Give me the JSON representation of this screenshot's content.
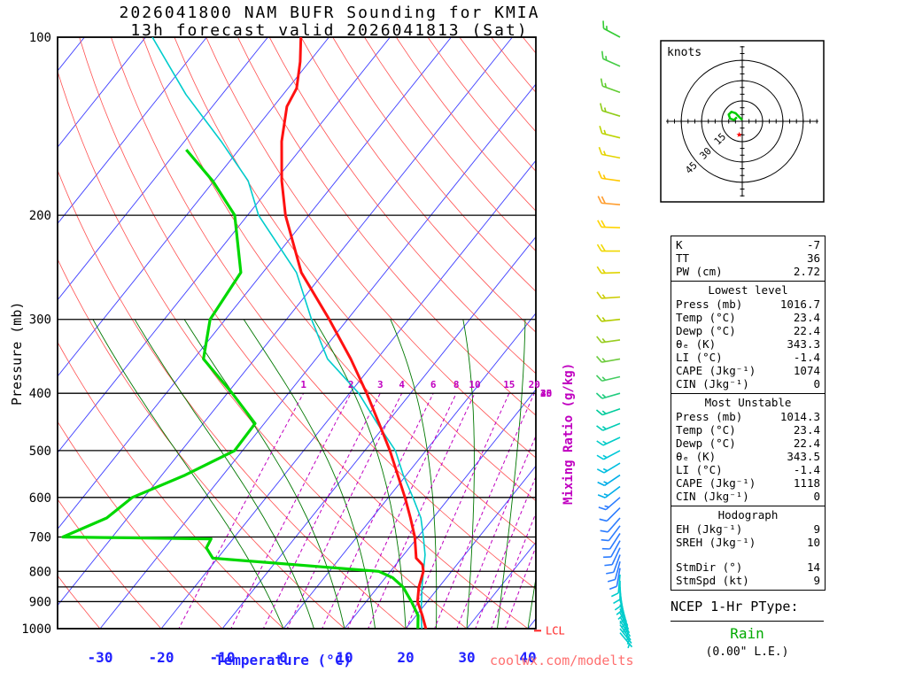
{
  "title": {
    "line1": "2026041800 NAM BUFR Sounding for KMIA",
    "line2": "13h forecast valid 2026041813 (Sat)"
  },
  "axes": {
    "pressure_label": "Pressure (mb)",
    "temperature_label": "Temperature (°C)",
    "mixing_ratio_label": "Mixing Ratio (g/kg)",
    "pressure_ticks": [
      100,
      200,
      300,
      400,
      500,
      600,
      700,
      800,
      900,
      1000
    ],
    "temperature_ticks": [
      -30,
      -20,
      -10,
      0,
      10,
      20,
      30,
      40
    ],
    "lcl_label": "LCL"
  },
  "watermark": "coolwx.com/modelts",
  "colors": {
    "temp_profile": "#ff1111",
    "dewpoint_profile": "#00d800",
    "parcel_profile": "#00cccc",
    "isotherm": "#4040ff",
    "dry_adiabat": "#ff5050",
    "moist_adiabat": "#007700",
    "mixing_ratio": "#c000c0",
    "grid_line": "#000000",
    "temp_axis_text": "#2222ff",
    "pressure_axis_text": "#000000",
    "lcl_marker": "#ff2222",
    "hodo_trace": "#00cc00",
    "storm_motion_star": "#ff0000",
    "ptype_value": "#00aa00",
    "watermark": "#ff7070"
  },
  "chart_data": {
    "type": "skewt-log-p-sounding",
    "pressure_range_mb": [
      100,
      1050
    ],
    "isotherm_range_c": [
      -110,
      40
    ],
    "isotherm_step_c": 10,
    "dry_adiabat_theta_c": {
      "min": -40,
      "max": 180,
      "step": 10
    },
    "moist_adiabat_start_temps_c": [
      0,
      5,
      10,
      15,
      20,
      25,
      30,
      35,
      40
    ],
    "mixing_ratio_lines_gkg": [
      1,
      2,
      3,
      4,
      6,
      8,
      10,
      15,
      20,
      25,
      30,
      35,
      40
    ],
    "mixing_ratio_labels_at_400mb": [
      1,
      2,
      3,
      4,
      6,
      8,
      10,
      15,
      20
    ],
    "mixing_ratio_labels_right_edge": [
      25,
      30,
      35,
      40
    ],
    "pressure_grid_lines_mb": [
      100,
      200,
      300,
      400,
      500,
      600,
      700,
      800,
      850,
      900,
      1000
    ],
    "lcl_pressure_mb": 1008,
    "temperature_profile": {
      "pressure_mb": [
        1016.7,
        1000,
        950,
        900,
        850,
        800,
        780,
        760,
        700,
        650,
        600,
        550,
        500,
        450,
        400,
        350,
        300,
        250,
        200,
        175,
        150,
        131,
        122,
        110,
        100
      ],
      "temp_c": [
        23.4,
        23.3,
        21.0,
        18.4,
        16.7,
        15.4,
        14.4,
        12.5,
        9.5,
        6.3,
        2.7,
        -1.4,
        -5.9,
        -11.2,
        -17.2,
        -24.3,
        -33.0,
        -43.7,
        -53.8,
        -58.9,
        -64.1,
        -67.8,
        -68.6,
        -71.5,
        -74.6
      ]
    },
    "dewpoint_profile": {
      "pressure_mb": [
        1016.7,
        1000,
        950,
        900,
        850,
        820,
        800,
        760,
        730,
        705,
        700,
        650,
        600,
        550,
        500,
        450,
        400,
        350,
        300,
        250,
        200,
        175,
        155
      ],
      "temp_c": [
        22.4,
        22.0,
        20.3,
        17.4,
        14.1,
        11.2,
        8.1,
        -20.8,
        -23.2,
        -23.6,
        -48.1,
        -43.4,
        -41.9,
        -36.2,
        -31.3,
        -31.5,
        -39.2,
        -48.4,
        -52.5,
        -53.6,
        -62.1,
        -70.2,
        -78.6
      ]
    },
    "parcel_profile": {
      "pressure_mb": [
        1010,
        950,
        850,
        750,
        700,
        650,
        600,
        550,
        500,
        450,
        400,
        350,
        300,
        250,
        200,
        175,
        150,
        125,
        100
      ],
      "temp_c": [
        23.0,
        20.8,
        17.2,
        13.5,
        10.9,
        8.0,
        4.0,
        -0.5,
        -5.0,
        -11.5,
        -18.5,
        -28.1,
        -35.9,
        -44.5,
        -58.2,
        -64.4,
        -74.0,
        -85.9,
        -98.9
      ]
    },
    "winds": [
      {
        "p": 1016,
        "spd": 5,
        "dir": 140,
        "color": "#00cccc"
      },
      {
        "p": 1000,
        "spd": 6,
        "dir": 142,
        "color": "#00cccc"
      },
      {
        "p": 985,
        "spd": 6,
        "dir": 145,
        "color": "#00cccc"
      },
      {
        "p": 970,
        "spd": 7,
        "dir": 147,
        "color": "#00cccc"
      },
      {
        "p": 955,
        "spd": 7,
        "dir": 150,
        "color": "#00cccc"
      },
      {
        "p": 940,
        "spd": 7,
        "dir": 153,
        "color": "#00cccc"
      },
      {
        "p": 925,
        "spd": 8,
        "dir": 156,
        "color": "#00cccc"
      },
      {
        "p": 910,
        "spd": 8,
        "dir": 160,
        "color": "#00cccc"
      },
      {
        "p": 895,
        "spd": 8,
        "dir": 164,
        "color": "#00cccc"
      },
      {
        "p": 880,
        "spd": 8,
        "dir": 168,
        "color": "#00cccc"
      },
      {
        "p": 865,
        "spd": 9,
        "dir": 172,
        "color": "#00cccc"
      },
      {
        "p": 850,
        "spd": 9,
        "dir": 176,
        "color": "#00cccc"
      },
      {
        "p": 830,
        "spd": 9,
        "dir": 180,
        "color": "#00cccc"
      },
      {
        "p": 810,
        "spd": 10,
        "dir": 185,
        "color": "#00cccc"
      },
      {
        "p": 790,
        "spd": 10,
        "dir": 190,
        "color": "#2b7cff"
      },
      {
        "p": 770,
        "spd": 10,
        "dir": 195,
        "color": "#2b7cff"
      },
      {
        "p": 750,
        "spd": 10,
        "dir": 200,
        "color": "#2b7cff"
      },
      {
        "p": 730,
        "spd": 11,
        "dir": 205,
        "color": "#2b7cff"
      },
      {
        "p": 710,
        "spd": 11,
        "dir": 209,
        "color": "#2b7cff"
      },
      {
        "p": 690,
        "spd": 11,
        "dir": 213,
        "color": "#2b7cff"
      },
      {
        "p": 670,
        "spd": 12,
        "dir": 217,
        "color": "#2b7cff"
      },
      {
        "p": 650,
        "spd": 12,
        "dir": 221,
        "color": "#2b7cff"
      },
      {
        "p": 625,
        "spd": 12,
        "dir": 225,
        "color": "#2b7cff"
      },
      {
        "p": 600,
        "spd": 13,
        "dir": 229,
        "color": "#2b7cff"
      },
      {
        "p": 575,
        "spd": 13,
        "dir": 233,
        "color": "#00aee8"
      },
      {
        "p": 550,
        "spd": 13,
        "dir": 236,
        "color": "#00aee8"
      },
      {
        "p": 525,
        "spd": 14,
        "dir": 239,
        "color": "#00bee0"
      },
      {
        "p": 500,
        "spd": 14,
        "dir": 242,
        "color": "#00c8d8"
      },
      {
        "p": 475,
        "spd": 14,
        "dir": 245,
        "color": "#00ccc8"
      },
      {
        "p": 450,
        "spd": 15,
        "dir": 248,
        "color": "#00ccb4"
      },
      {
        "p": 425,
        "spd": 15,
        "dir": 251,
        "color": "#00cc9c"
      },
      {
        "p": 400,
        "spd": 15,
        "dir": 254,
        "color": "#22cc80"
      },
      {
        "p": 375,
        "spd": 15,
        "dir": 257,
        "color": "#44cc60"
      },
      {
        "p": 350,
        "spd": 16,
        "dir": 260,
        "color": "#70cc40"
      },
      {
        "p": 325,
        "spd": 16,
        "dir": 262,
        "color": "#98cc20"
      },
      {
        "p": 300,
        "spd": 16,
        "dir": 264,
        "color": "#b4cc00"
      },
      {
        "p": 275,
        "spd": 17,
        "dir": 266,
        "color": "#cccc00"
      },
      {
        "p": 250,
        "spd": 17,
        "dir": 268,
        "color": "#e0d400"
      },
      {
        "p": 230,
        "spd": 18,
        "dir": 270,
        "color": "#f0d800"
      },
      {
        "p": 210,
        "spd": 18,
        "dir": 272,
        "color": "#ffd400"
      },
      {
        "p": 192,
        "spd": 18,
        "dir": 275,
        "color": "#ff9d2e"
      },
      {
        "p": 175,
        "spd": 17,
        "dir": 278,
        "color": "#ffc800"
      },
      {
        "p": 160,
        "spd": 17,
        "dir": 281,
        "color": "#e4d400"
      },
      {
        "p": 148,
        "spd": 16,
        "dir": 284,
        "color": "#bcd400"
      },
      {
        "p": 136,
        "spd": 16,
        "dir": 287,
        "color": "#90cc18"
      },
      {
        "p": 124,
        "spd": 15,
        "dir": 290,
        "color": "#60cc30"
      },
      {
        "p": 112,
        "spd": 15,
        "dir": 294,
        "color": "#44cc44"
      },
      {
        "p": 100,
        "spd": 16,
        "dir": 298,
        "color": "#33cc33"
      }
    ]
  },
  "hodograph": {
    "units_label": "knots",
    "ring_labels": [
      15,
      30,
      45
    ],
    "ring_step_kt": 15,
    "trace_uv_kt": [
      [
        0,
        1
      ],
      [
        -2,
        3
      ],
      [
        -5,
        6
      ],
      [
        -8,
        7
      ],
      [
        -10,
        5
      ],
      [
        -9,
        2
      ],
      [
        -6,
        1
      ],
      [
        -4,
        3
      ]
    ],
    "storm_motion": {
      "dir_deg": 14,
      "spd_kt": 9
    }
  },
  "stats_sections": [
    {
      "title": "",
      "rows": [
        [
          "K",
          "-7"
        ],
        [
          "TT",
          "36"
        ],
        [
          "PW (cm)",
          "2.72"
        ]
      ]
    },
    {
      "title": "Lowest level",
      "rows": [
        [
          "Press (mb)",
          "1016.7"
        ],
        [
          "Temp (°C)",
          "23.4"
        ],
        [
          "Dewp (°C)",
          "22.4"
        ],
        [
          "θₑ (K)",
          "343.3"
        ],
        [
          "LI (°C)",
          "-1.4"
        ],
        [
          "CAPE (Jkg⁻¹)",
          "1074"
        ],
        [
          "CIN (Jkg⁻¹)",
          "0"
        ]
      ]
    },
    {
      "title": "Most Unstable",
      "rows": [
        [
          "Press (mb)",
          "1014.3"
        ],
        [
          "Temp (°C)",
          "23.4"
        ],
        [
          "Dewp (°C)",
          "22.4"
        ],
        [
          "θₑ (K)",
          "343.5"
        ],
        [
          "LI (°C)",
          "-1.4"
        ],
        [
          "CAPE (Jkg⁻¹)",
          "1118"
        ],
        [
          "CIN (Jkg⁻¹)",
          "0"
        ]
      ]
    },
    {
      "title": "Hodograph",
      "rows": [
        [
          "EH (Jkg⁻¹)",
          "9"
        ],
        [
          "SREH (Jkg⁻¹)",
          "10"
        ],
        [
          "",
          ""
        ],
        [
          "StmDir (°)",
          "14"
        ],
        [
          "StmSpd (kt)",
          "9"
        ]
      ]
    }
  ],
  "ptype": {
    "heading": "NCEP 1-Hr PType:",
    "value": "Rain",
    "detail": "(0.00\" L.E.)"
  }
}
